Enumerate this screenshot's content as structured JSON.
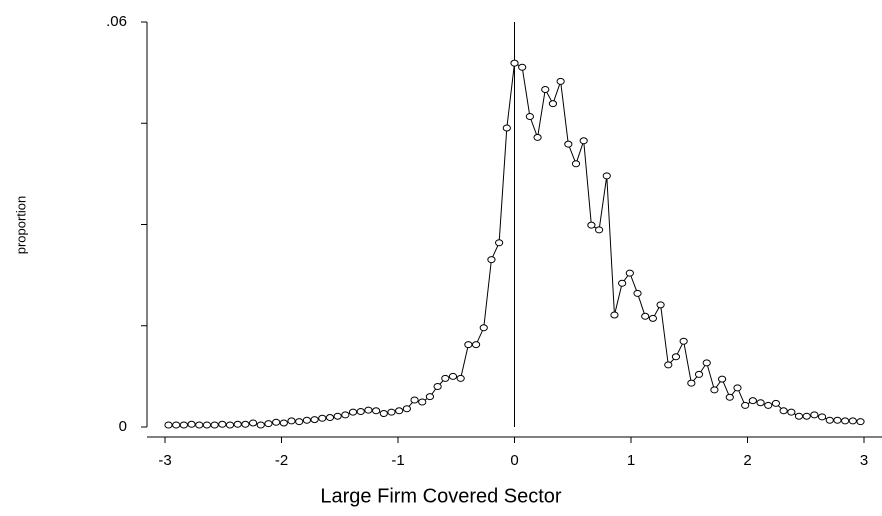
{
  "chart_data": {
    "type": "line",
    "xlabel": "Large Firm Covered Sector",
    "ylabel": "proportion",
    "x": [
      -2.97,
      -2.904,
      -2.838,
      -2.772,
      -2.706,
      -2.64,
      -2.574,
      -2.508,
      -2.442,
      -2.376,
      -2.31,
      -2.244,
      -2.178,
      -2.112,
      -2.046,
      -1.98,
      -1.914,
      -1.848,
      -1.782,
      -1.716,
      -1.65,
      -1.584,
      -1.518,
      -1.452,
      -1.386,
      -1.32,
      -1.254,
      -1.188,
      -1.122,
      -1.056,
      -0.99,
      -0.924,
      -0.858,
      -0.792,
      -0.726,
      -0.66,
      -0.594,
      -0.528,
      -0.462,
      -0.396,
      -0.33,
      -0.264,
      -0.198,
      -0.132,
      -0.066,
      0,
      0.066,
      0.132,
      0.198,
      0.264,
      0.33,
      0.396,
      0.462,
      0.528,
      0.594,
      0.66,
      0.726,
      0.792,
      0.858,
      0.924,
      0.99,
      1.056,
      1.122,
      1.188,
      1.254,
      1.32,
      1.386,
      1.452,
      1.518,
      1.584,
      1.65,
      1.716,
      1.782,
      1.848,
      1.914,
      1.98,
      2.046,
      2.112,
      2.178,
      2.244,
      2.31,
      2.376,
      2.442,
      2.508,
      2.574,
      2.64,
      2.706,
      2.772,
      2.838,
      2.904,
      2.97
    ],
    "values": [
      0.0003,
      0.0003,
      0.0003,
      0.0004,
      0.0003,
      0.0003,
      0.0003,
      0.0004,
      0.0003,
      0.0004,
      0.0004,
      0.0006,
      0.0003,
      0.0005,
      0.0007,
      0.0006,
      0.0009,
      0.0008,
      0.001,
      0.0011,
      0.0013,
      0.0014,
      0.0016,
      0.0018,
      0.0022,
      0.0023,
      0.0025,
      0.0024,
      0.002,
      0.0022,
      0.0024,
      0.0027,
      0.004,
      0.0037,
      0.0045,
      0.006,
      0.0072,
      0.0075,
      0.0072,
      0.0122,
      0.0122,
      0.0147,
      0.0248,
      0.0273,
      0.0443,
      0.0539,
      0.0533,
      0.046,
      0.0429,
      0.05,
      0.0479,
      0.0512,
      0.0419,
      0.039,
      0.0424,
      0.0299,
      0.0292,
      0.0372,
      0.0166,
      0.0213,
      0.0228,
      0.0198,
      0.0164,
      0.0161,
      0.0181,
      0.0092,
      0.0104,
      0.0127,
      0.0065,
      0.0078,
      0.0095,
      0.0055,
      0.0071,
      0.0044,
      0.0058,
      0.0032,
      0.0039,
      0.0036,
      0.0032,
      0.0035,
      0.0024,
      0.0022,
      0.0016,
      0.0016,
      0.0018,
      0.0015,
      0.001,
      0.001,
      0.0009,
      0.0009,
      0.0008
    ],
    "color": "#000000",
    "xlim": [
      -3.13,
      3.2
    ],
    "xticks": [
      -3,
      -2,
      -1,
      0,
      1,
      2,
      3
    ],
    "ylim": [
      0,
      0.06
    ],
    "yticks": [
      0,
      {
        "value": 0.06,
        "label": ".06"
      }
    ],
    "yminorticks": [
      0.015,
      0.03,
      0.045
    ],
    "xline": 0,
    "grid": false
  }
}
